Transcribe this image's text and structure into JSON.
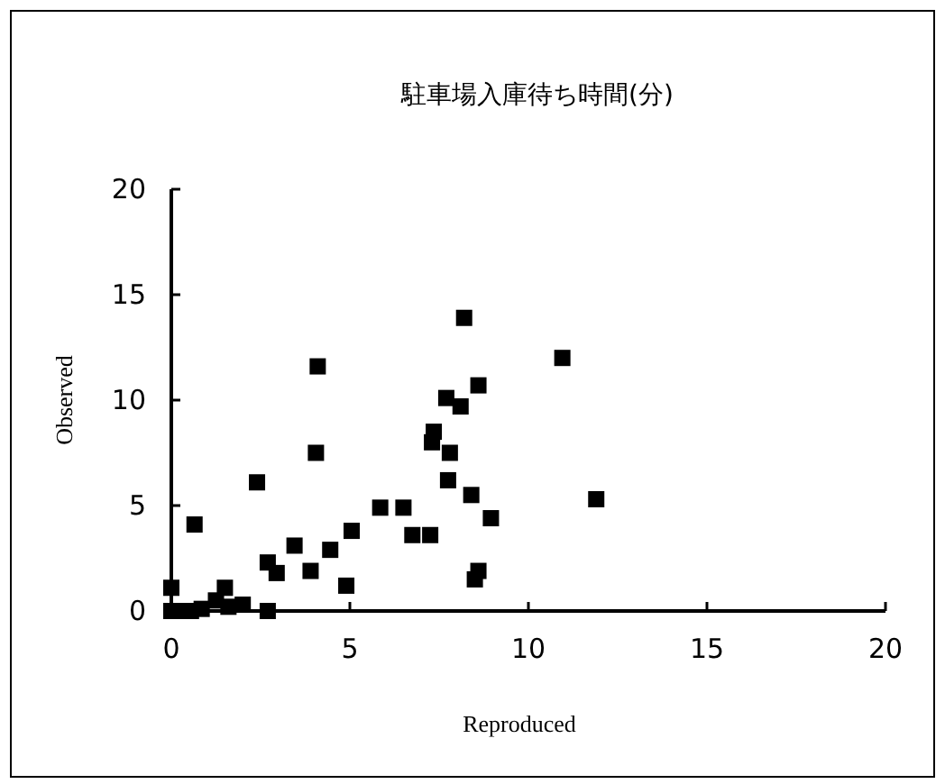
{
  "chart_data": {
    "type": "scatter",
    "title": "駐車場入庫待ち時間(分)",
    "xlabel": "Reproduced",
    "ylabel": "Observed",
    "marker": "square",
    "grid": false,
    "x": [
      0,
      0,
      0.3,
      0.55,
      0.65,
      0.85,
      1.25,
      1.5,
      1.6,
      2.0,
      2.4,
      2.7,
      2.7,
      2.95,
      3.45,
      3.9,
      4.05,
      4.1,
      4.45,
      4.9,
      5.05,
      5.85,
      6.5,
      6.75,
      7.25,
      7.3,
      7.35,
      7.7,
      7.75,
      7.8,
      8.1,
      8.2,
      8.4,
      8.5,
      8.6,
      8.6,
      8.95,
      10.95,
      11.9
    ],
    "series": [
      {
        "color": "#000000",
        "values": [
          1.1,
          0,
          0,
          0,
          4.1,
          0.1,
          0.5,
          1.1,
          0.2,
          0.3,
          6.1,
          0,
          2.3,
          1.8,
          3.1,
          1.9,
          7.5,
          11.6,
          2.9,
          1.2,
          3.8,
          4.9,
          4.9,
          3.6,
          3.6,
          8.0,
          8.5,
          10.1,
          6.2,
          7.5,
          9.7,
          13.9,
          5.5,
          1.5,
          1.9,
          10.7,
          4.4,
          12.0,
          5.3
        ]
      }
    ],
    "xlim": [
      0,
      20
    ],
    "ylim": [
      0,
      20
    ],
    "xticks": [
      0,
      5,
      10,
      15,
      20
    ],
    "yticks": [
      0,
      5,
      10,
      15,
      20
    ]
  }
}
